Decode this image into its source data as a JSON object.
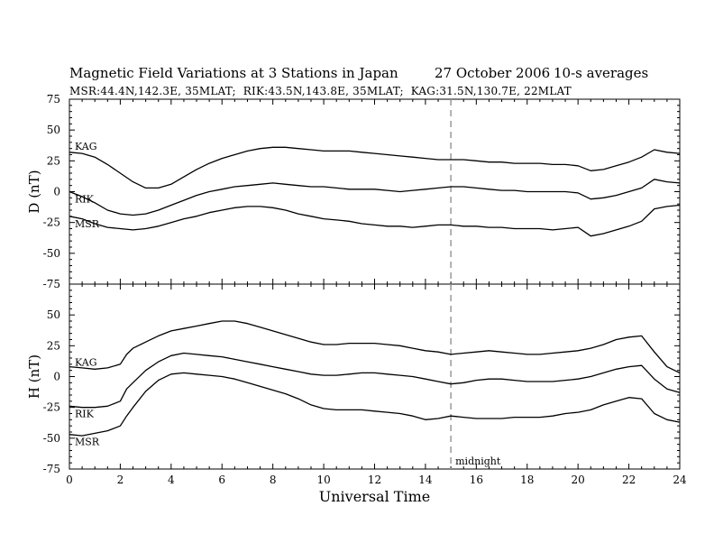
{
  "title": "Magnetic Field Variations at 3 Stations in Japan",
  "date": "27 October 2006",
  "averaging": "10-s averages",
  "stations_line": "MSR:44.4N,142.3E, 35MLAT;  RIK:43.5N,143.8E, 35MLAT;  KAG:31.5N,130.7E, 22MLAT",
  "colors": {
    "trace": "#000000",
    "midnight_line": "#999999",
    "axes": "#000000"
  },
  "chart_data": [
    {
      "type": "line",
      "panel": "D",
      "ylabel": "D (nT)",
      "xlabel": "",
      "ylim": [
        -75,
        75
      ],
      "xlim": [
        0,
        24
      ],
      "yticks": [
        -75,
        -50,
        -25,
        0,
        25,
        50,
        75
      ],
      "annotation": {
        "text": "",
        "x": 15
      },
      "series": [
        {
          "name": "KAG",
          "x": [
            0,
            0.5,
            1,
            1.5,
            2,
            2.5,
            3,
            3.5,
            4,
            4.5,
            5,
            5.5,
            6,
            6.5,
            7,
            7.5,
            8,
            8.5,
            9,
            9.5,
            10,
            10.5,
            11,
            11.5,
            12,
            12.5,
            13,
            13.5,
            14,
            14.5,
            15,
            15.5,
            16,
            16.5,
            17,
            17.5,
            18,
            18.5,
            19,
            19.5,
            20,
            20.5,
            21,
            21.5,
            22,
            22.5,
            23,
            23.5,
            24
          ],
          "y": [
            32,
            31,
            28,
            22,
            15,
            8,
            3,
            3,
            6,
            12,
            18,
            23,
            27,
            30,
            33,
            35,
            36,
            36,
            35,
            34,
            33,
            33,
            33,
            32,
            31,
            30,
            29,
            28,
            27,
            26,
            26,
            26,
            25,
            24,
            24,
            23,
            23,
            23,
            22,
            22,
            21,
            17,
            18,
            21,
            24,
            28,
            34,
            32,
            31
          ]
        },
        {
          "name": "RIK",
          "x": [
            0,
            0.5,
            1,
            1.5,
            2,
            2.5,
            3,
            3.5,
            4,
            4.5,
            5,
            5.5,
            6,
            6.5,
            7,
            7.5,
            8,
            8.5,
            9,
            9.5,
            10,
            10.5,
            11,
            11.5,
            12,
            12.5,
            13,
            13.5,
            14,
            14.5,
            15,
            15.5,
            16,
            16.5,
            17,
            17.5,
            18,
            18.5,
            19,
            19.5,
            20,
            20.5,
            21,
            21.5,
            22,
            22.5,
            23,
            23.5,
            24
          ],
          "y": [
            0,
            -4,
            -9,
            -15,
            -18,
            -19,
            -18,
            -15,
            -11,
            -7,
            -3,
            0,
            2,
            4,
            5,
            6,
            7,
            6,
            5,
            4,
            4,
            3,
            2,
            2,
            2,
            1,
            0,
            1,
            2,
            3,
            4,
            4,
            3,
            2,
            1,
            1,
            0,
            0,
            0,
            0,
            -1,
            -6,
            -5,
            -3,
            0,
            3,
            10,
            8,
            7
          ]
        },
        {
          "name": "MSR",
          "x": [
            0,
            0.5,
            1,
            1.5,
            2,
            2.5,
            3,
            3.5,
            4,
            4.5,
            5,
            5.5,
            6,
            6.5,
            7,
            7.5,
            8,
            8.5,
            9,
            9.5,
            10,
            10.5,
            11,
            11.5,
            12,
            12.5,
            13,
            13.5,
            14,
            14.5,
            15,
            15.5,
            16,
            16.5,
            17,
            17.5,
            18,
            18.5,
            19,
            19.5,
            20,
            20.5,
            21,
            21.5,
            22,
            22.5,
            23,
            23.5,
            24
          ],
          "y": [
            -20,
            -22,
            -26,
            -29,
            -30,
            -31,
            -30,
            -28,
            -25,
            -22,
            -20,
            -17,
            -15,
            -13,
            -12,
            -12,
            -13,
            -15,
            -18,
            -20,
            -22,
            -23,
            -24,
            -26,
            -27,
            -28,
            -28,
            -29,
            -28,
            -27,
            -27,
            -28,
            -28,
            -29,
            -29,
            -30,
            -30,
            -30,
            -31,
            -30,
            -29,
            -36,
            -34,
            -31,
            -28,
            -24,
            -14,
            -12,
            -11
          ]
        }
      ]
    },
    {
      "type": "line",
      "panel": "H",
      "ylabel": "H (nT)",
      "xlabel": "Universal Time",
      "ylim": [
        -75,
        75
      ],
      "xlim": [
        0,
        24
      ],
      "yticks": [
        -75,
        -50,
        -25,
        0,
        25,
        50
      ],
      "xticks": [
        0,
        2,
        4,
        6,
        8,
        10,
        12,
        14,
        16,
        18,
        20,
        22,
        24
      ],
      "annotation": {
        "text": "midnight",
        "x": 15
      },
      "series": [
        {
          "name": "KAG",
          "x": [
            0,
            0.5,
            1,
            1.5,
            2,
            2.25,
            2.5,
            3,
            3.5,
            4,
            4.5,
            5,
            5.5,
            6,
            6.5,
            7,
            7.5,
            8,
            8.5,
            9,
            9.5,
            10,
            10.5,
            11,
            11.5,
            12,
            12.5,
            13,
            13.5,
            14,
            14.5,
            15,
            15.5,
            16,
            16.5,
            17,
            17.5,
            18,
            18.5,
            19,
            19.5,
            20,
            20.5,
            21,
            21.5,
            22,
            22.5,
            23,
            23.5,
            24
          ],
          "y": [
            8,
            7,
            6,
            7,
            10,
            18,
            23,
            28,
            33,
            37,
            39,
            41,
            43,
            45,
            45,
            43,
            40,
            37,
            34,
            31,
            28,
            26,
            26,
            27,
            27,
            27,
            26,
            25,
            23,
            21,
            20,
            18,
            19,
            20,
            21,
            20,
            19,
            18,
            18,
            19,
            20,
            21,
            23,
            26,
            30,
            32,
            33,
            20,
            8,
            3
          ]
        },
        {
          "name": "RIK",
          "x": [
            0,
            0.5,
            1,
            1.5,
            2,
            2.25,
            2.5,
            3,
            3.5,
            4,
            4.5,
            5,
            5.5,
            6,
            6.5,
            7,
            7.5,
            8,
            8.5,
            9,
            9.5,
            10,
            10.5,
            11,
            11.5,
            12,
            12.5,
            13,
            13.5,
            14,
            14.5,
            15,
            15.5,
            16,
            16.5,
            17,
            17.5,
            18,
            18.5,
            19,
            19.5,
            20,
            20.5,
            21,
            21.5,
            22,
            22.5,
            23,
            23.5,
            24
          ],
          "y": [
            -24,
            -25,
            -25,
            -24,
            -20,
            -10,
            -5,
            5,
            12,
            17,
            19,
            18,
            17,
            16,
            14,
            12,
            10,
            8,
            6,
            4,
            2,
            1,
            1,
            2,
            3,
            3,
            2,
            1,
            0,
            -2,
            -4,
            -6,
            -5,
            -3,
            -2,
            -2,
            -3,
            -4,
            -4,
            -4,
            -3,
            -2,
            0,
            3,
            6,
            8,
            9,
            -2,
            -10,
            -13
          ]
        },
        {
          "name": "MSR",
          "x": [
            0,
            0.5,
            1,
            1.5,
            2,
            2.25,
            2.5,
            3,
            3.5,
            4,
            4.5,
            5,
            5.5,
            6,
            6.5,
            7,
            7.5,
            8,
            8.5,
            9,
            9.5,
            10,
            10.5,
            11,
            11.5,
            12,
            12.5,
            13,
            13.5,
            14,
            14.5,
            15,
            15.5,
            16,
            16.5,
            17,
            17.5,
            18,
            18.5,
            19,
            19.5,
            20,
            20.5,
            21,
            21.5,
            22,
            22.5,
            23,
            23.5,
            24
          ],
          "y": [
            -47,
            -48,
            -46,
            -44,
            -40,
            -32,
            -25,
            -12,
            -3,
            2,
            3,
            2,
            1,
            0,
            -2,
            -5,
            -8,
            -11,
            -14,
            -18,
            -23,
            -26,
            -27,
            -27,
            -27,
            -28,
            -29,
            -30,
            -32,
            -35,
            -34,
            -32,
            -33,
            -34,
            -34,
            -34,
            -33,
            -33,
            -33,
            -32,
            -30,
            -29,
            -27,
            -23,
            -20,
            -17,
            -18,
            -30,
            -35,
            -37
          ]
        }
      ]
    }
  ]
}
